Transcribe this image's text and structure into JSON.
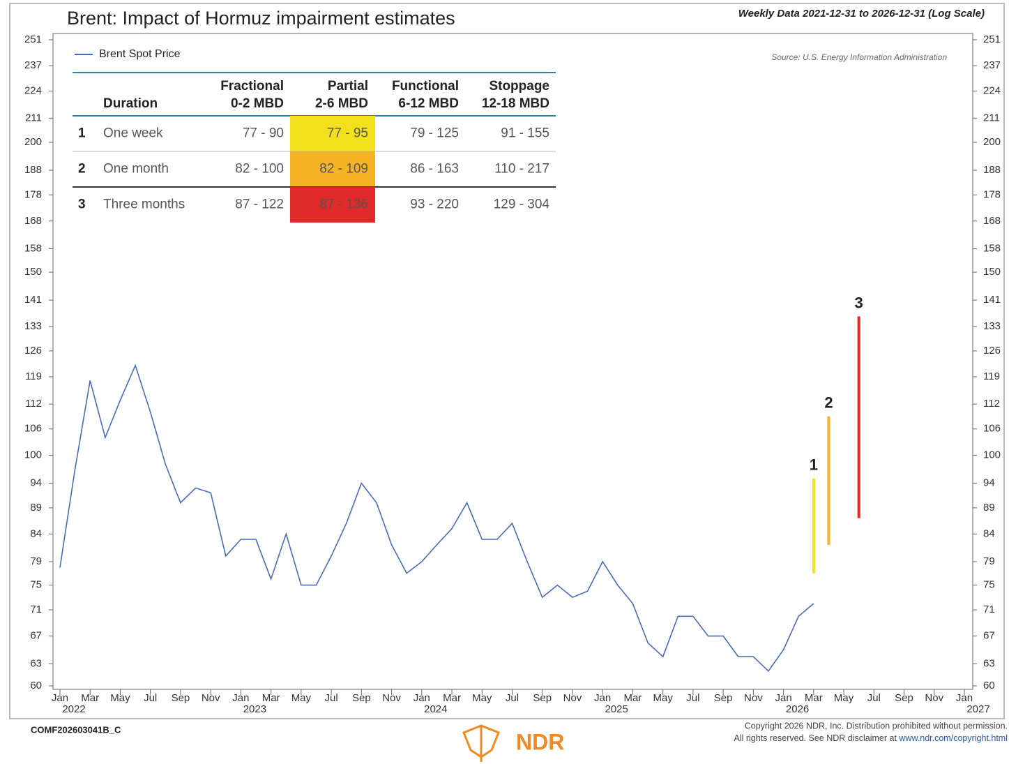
{
  "chart_data": {
    "type": "line",
    "title": "Brent: Impact of Hormuz impairment estimates",
    "subtitle": "Weekly Data 2021-12-31 to 2026-12-31 (Log Scale)",
    "source": "Source: U.S. Energy Information Administration",
    "log_y": true,
    "xlim": [
      "2022-01",
      "2027-01"
    ],
    "ylim": [
      60,
      251
    ],
    "yticks": [
      60,
      63,
      67,
      71,
      75,
      79,
      84,
      89,
      94,
      100,
      106,
      112,
      119,
      126,
      133,
      141,
      150,
      158,
      168,
      178,
      188,
      200,
      211,
      224,
      237,
      251
    ],
    "xticks": [
      {
        "value": "2022-01",
        "label": "Jan"
      },
      {
        "value": "2022-03",
        "label": "Mar"
      },
      {
        "value": "2022-05",
        "label": "May"
      },
      {
        "value": "2022-07",
        "label": "Jul"
      },
      {
        "value": "2022-09",
        "label": "Sep"
      },
      {
        "value": "2022-11",
        "label": "Nov"
      },
      {
        "value": "2023-01",
        "label": "Jan"
      },
      {
        "value": "2023-03",
        "label": "Mar"
      },
      {
        "value": "2023-05",
        "label": "May"
      },
      {
        "value": "2023-07",
        "label": "Jul"
      },
      {
        "value": "2023-09",
        "label": "Sep"
      },
      {
        "value": "2023-11",
        "label": "Nov"
      },
      {
        "value": "2024-01",
        "label": "Jan"
      },
      {
        "value": "2024-03",
        "label": "Mar"
      },
      {
        "value": "2024-05",
        "label": "May"
      },
      {
        "value": "2024-07",
        "label": "Jul"
      },
      {
        "value": "2024-09",
        "label": "Sep"
      },
      {
        "value": "2024-11",
        "label": "Nov"
      },
      {
        "value": "2025-01",
        "label": "Jan"
      },
      {
        "value": "2025-03",
        "label": "Mar"
      },
      {
        "value": "2025-05",
        "label": "May"
      },
      {
        "value": "2025-07",
        "label": "Jul"
      },
      {
        "value": "2025-09",
        "label": "Sep"
      },
      {
        "value": "2025-11",
        "label": "Nov"
      },
      {
        "value": "2026-01",
        "label": "Jan"
      },
      {
        "value": "2026-03",
        "label": "Mar"
      },
      {
        "value": "2026-05",
        "label": "May"
      },
      {
        "value": "2026-07",
        "label": "Jul"
      },
      {
        "value": "2026-09",
        "label": "Sep"
      },
      {
        "value": "2026-11",
        "label": "Nov"
      },
      {
        "value": "2027-01",
        "label": "Jan"
      }
    ],
    "xyears": [
      {
        "value": "2022-01",
        "label": "2022"
      },
      {
        "value": "2023-01",
        "label": "2023"
      },
      {
        "value": "2024-01",
        "label": "2024"
      },
      {
        "value": "2025-01",
        "label": "2025"
      },
      {
        "value": "2026-01",
        "label": "2026"
      },
      {
        "value": "2027-01",
        "label": "2027"
      }
    ],
    "x": [
      "2022-01",
      "2022-02",
      "2022-03",
      "2022-04",
      "2022-05",
      "2022-06",
      "2022-07",
      "2022-08",
      "2022-09",
      "2022-10",
      "2022-11",
      "2022-12",
      "2023-01",
      "2023-02",
      "2023-03",
      "2023-04",
      "2023-05",
      "2023-06",
      "2023-07",
      "2023-08",
      "2023-09",
      "2023-10",
      "2023-11",
      "2023-12",
      "2024-01",
      "2024-02",
      "2024-03",
      "2024-04",
      "2024-05",
      "2024-06",
      "2024-07",
      "2024-08",
      "2024-09",
      "2024-10",
      "2024-11",
      "2024-12",
      "2025-01",
      "2025-02",
      "2025-03",
      "2025-04",
      "2025-05",
      "2025-06",
      "2025-07",
      "2025-08",
      "2025-09",
      "2025-10",
      "2025-11",
      "2025-12",
      "2026-01",
      "2026-02",
      "2026-03"
    ],
    "series": [
      {
        "name": "Brent Spot Price",
        "color": "#4a6bb5",
        "values": [
          78,
          97,
          118,
          104,
          113,
          122,
          110,
          98,
          90,
          93,
          92,
          80,
          83,
          83,
          76,
          84,
          75,
          75,
          80,
          86,
          94,
          90,
          82,
          77,
          79,
          82,
          85,
          90,
          83,
          83,
          86,
          79,
          73,
          75,
          73,
          74,
          79,
          75,
          72,
          66,
          64,
          70,
          70,
          67,
          67,
          64,
          64,
          62,
          65,
          70,
          72
        ]
      }
    ],
    "ranges": [
      {
        "label": "1",
        "x": "2026-03",
        "low": 77,
        "high": 95,
        "color": "#f2e01c"
      },
      {
        "label": "2",
        "x": "2026-04",
        "low": 82,
        "high": 109,
        "color": "#f5b325"
      },
      {
        "label": "3",
        "x": "2026-06",
        "low": 87,
        "high": 136,
        "color": "#e02a2a"
      }
    ],
    "table": {
      "duration_header": "Duration",
      "columns": [
        {
          "label": "Fractional",
          "sub": "0-2 MBD"
        },
        {
          "label": "Partial",
          "sub": "2-6 MBD"
        },
        {
          "label": "Functional",
          "sub": "6-12 MBD"
        },
        {
          "label": "Stoppage",
          "sub": "12-18 MBD"
        }
      ],
      "highlight_column": 1,
      "rows": [
        {
          "num": "1",
          "duration": "One week",
          "cells": [
            "77 - 90",
            "77 - 95",
            "79 - 125",
            "91 - 155"
          ]
        },
        {
          "num": "2",
          "duration": "One month",
          "cells": [
            "82 - 100",
            "82 - 109",
            "86 - 163",
            "110 - 217"
          ]
        },
        {
          "num": "3",
          "duration": "Three months",
          "cells": [
            "87 - 122",
            "87 - 136",
            "93 - 220",
            "129 - 304"
          ]
        }
      ]
    },
    "footer": {
      "code": "COMF202603041B_C",
      "logo": "NDR",
      "copyright": "Copyright 2026 NDR, Inc. Distribution prohibited without permission.",
      "rights": "All rights reserved. See NDR disclaimer at ",
      "link": "www.ndr.com/copyright.html"
    }
  }
}
